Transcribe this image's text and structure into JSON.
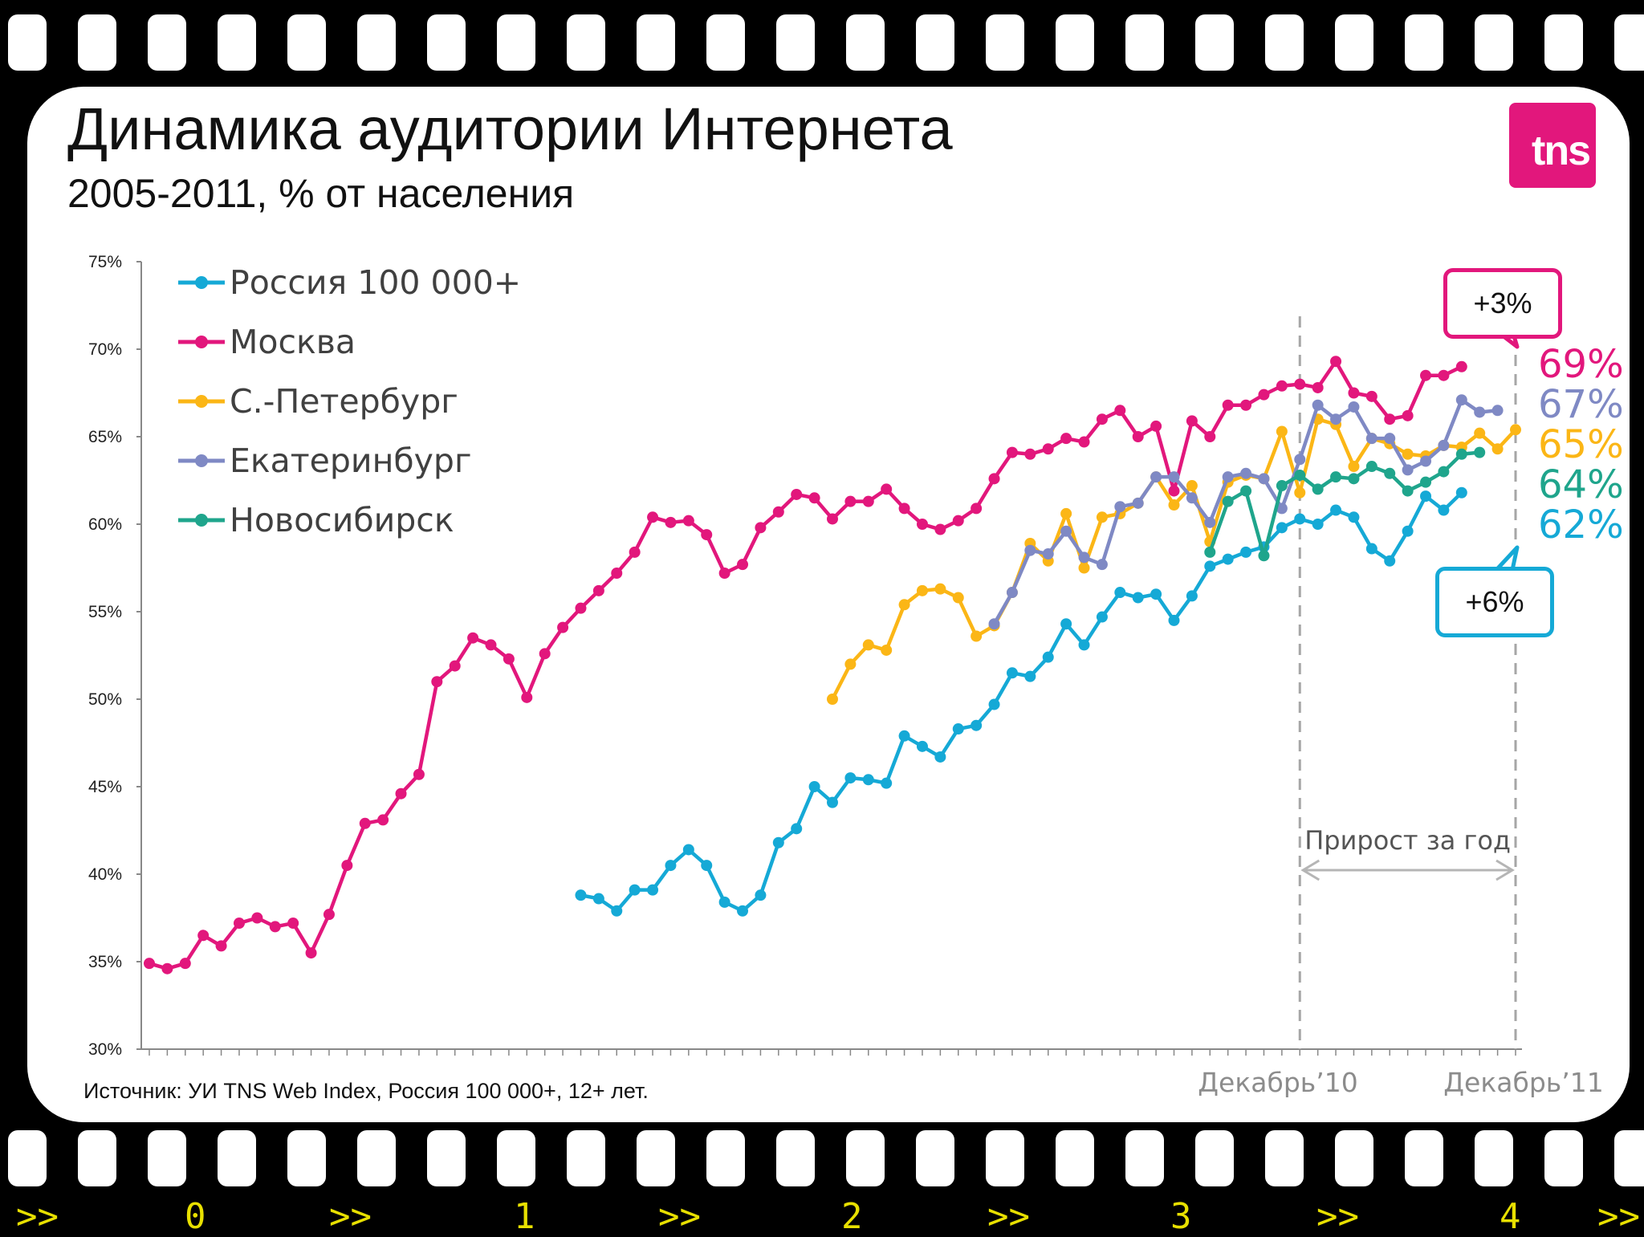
{
  "title": "Динамика аудитории Интернета",
  "subtitle": "2005-2011, % от населения",
  "logo_text": "tns",
  "source": "Источник: УИ TNS Web Index, Россия 100 000+, 12+ лет.",
  "film_strip": {
    "labels": [
      ">>",
      "0",
      ">>",
      "1",
      ">>",
      "2",
      ">>",
      "3",
      ">>",
      "4",
      ">>"
    ]
  },
  "colors": {
    "russia": "#15a9d6",
    "moscow": "#e2177c",
    "spb": "#fbb616",
    "ekb": "#7f89c4",
    "nsk": "#1fa58c",
    "dashed": "#a6a6a6"
  },
  "chart_data": {
    "type": "line",
    "ylim": [
      30,
      75
    ],
    "yticks": [
      "30%",
      "35%",
      "40%",
      "45%",
      "50%",
      "55%",
      "60%",
      "65%",
      "70%",
      "75%"
    ],
    "x_labels": [
      "Декабрь’10",
      "Декабрь’11"
    ],
    "x_label_indices": [
      64,
      76
    ],
    "num_points": 77,
    "annotation_text": "Прирост за год",
    "callouts": [
      {
        "text": "+3%",
        "series": "moscow"
      },
      {
        "text": "+6%",
        "series": "russia"
      }
    ],
    "end_labels": [
      {
        "text": "69%",
        "series": "moscow"
      },
      {
        "text": "67%",
        "series": "ekb"
      },
      {
        "text": "65%",
        "series": "spb"
      },
      {
        "text": "64%",
        "series": "nsk"
      },
      {
        "text": "62%",
        "series": "russia"
      }
    ],
    "series": [
      {
        "key": "russia",
        "name": "Россия 100 000+",
        "start": 24,
        "values": [
          38.8,
          38.6,
          37.9,
          39.1,
          39.1,
          40.5,
          41.4,
          40.5,
          38.4,
          37.9,
          38.8,
          41.8,
          42.6,
          45.0,
          44.1,
          45.5,
          45.4,
          45.2,
          47.9,
          47.3,
          46.7,
          48.3,
          48.5,
          49.7,
          51.5,
          51.3,
          52.4,
          54.3,
          53.1,
          54.7,
          56.1,
          55.8,
          56.0,
          54.5,
          55.9,
          57.6,
          58.0,
          58.4,
          58.7,
          59.8,
          60.3,
          60.0,
          60.8,
          60.4,
          58.6,
          57.9,
          59.6,
          61.6,
          60.8,
          61.8
        ]
      },
      {
        "key": "moscow",
        "name": "Москва",
        "start": 0,
        "values": [
          34.9,
          34.6,
          34.9,
          36.5,
          35.9,
          37.2,
          37.5,
          37.0,
          37.2,
          35.5,
          37.7,
          40.5,
          42.9,
          43.1,
          44.6,
          45.7,
          51.0,
          51.9,
          53.5,
          53.1,
          52.3,
          50.1,
          52.6,
          54.1,
          55.2,
          56.2,
          57.2,
          58.4,
          60.4,
          60.1,
          60.2,
          59.4,
          57.2,
          57.7,
          59.8,
          60.7,
          61.7,
          61.5,
          60.3,
          61.3,
          61.3,
          62.0,
          60.9,
          60.0,
          59.7,
          60.2,
          60.9,
          62.6,
          64.1,
          64.0,
          64.3,
          64.9,
          64.7,
          66.0,
          66.5,
          65.0,
          65.6,
          61.9,
          65.9,
          65.0,
          66.8,
          66.8,
          67.4,
          67.9,
          68.0,
          67.8,
          69.3,
          67.5,
          67.3,
          66.0,
          66.2,
          68.5,
          68.5,
          69.0
        ]
      },
      {
        "key": "spb",
        "name": "С.-Петербург",
        "start": 38,
        "values": [
          50.0,
          52.0,
          53.1,
          52.8,
          55.4,
          56.2,
          56.3,
          55.8,
          53.6,
          54.2,
          56.1,
          58.9,
          57.9,
          60.6,
          57.5,
          60.4,
          60.6,
          61.2,
          62.7,
          61.1,
          62.2,
          59.0,
          62.4,
          62.8,
          62.6,
          65.3,
          61.8,
          66.0,
          65.7,
          63.3,
          64.9,
          64.6,
          64.0,
          63.9,
          64.5,
          64.4,
          65.2,
          64.3,
          65.4
        ]
      },
      {
        "key": "ekb",
        "name": "Екатеринбург",
        "start": 47,
        "values": [
          54.3,
          56.1,
          58.5,
          58.3,
          59.6,
          58.1,
          57.7,
          61.0,
          61.2,
          62.7,
          62.7,
          61.5,
          60.1,
          62.7,
          62.9,
          62.6,
          60.9,
          63.7,
          66.8,
          66.0,
          66.7,
          64.9,
          64.9,
          63.1,
          63.6,
          64.5,
          67.1,
          66.4,
          66.5
        ]
      },
      {
        "key": "nsk",
        "name": "Новосибирск",
        "start": 59,
        "values": [
          58.4,
          61.3,
          61.9,
          58.2,
          62.2,
          62.8,
          62.0,
          62.7,
          62.6,
          63.3,
          62.9,
          61.9,
          62.4,
          63.0,
          64.0,
          64.1
        ]
      }
    ]
  }
}
